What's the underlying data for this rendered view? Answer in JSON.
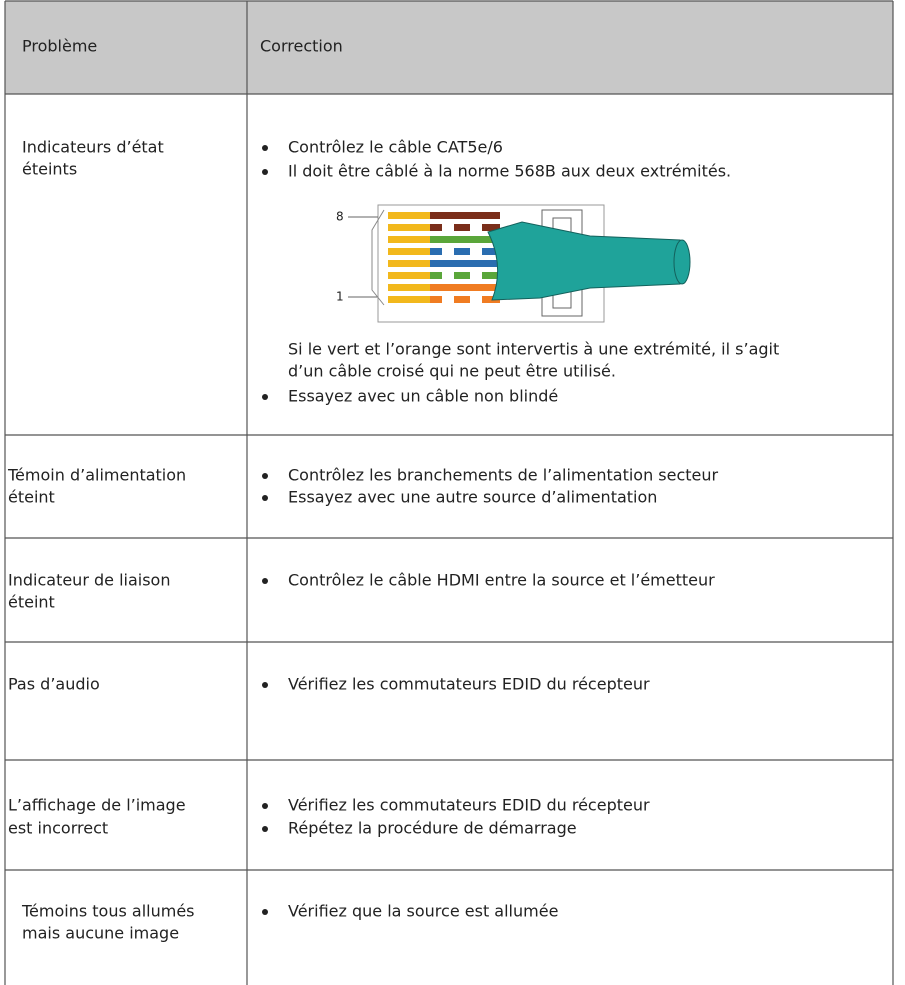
{
  "table": {
    "header": [
      "Problème",
      "Correction"
    ],
    "figure_labels": [
      "8",
      "1"
    ],
    "rows": [
      {
        "problem": [
          "Indicateurs d’état",
          "éteints"
        ],
        "correction": [
          {
            "bullet": "Contrôlez le câble CAT5e/6"
          },
          {
            "bullet": "Il doit être câblé à la norme 568B aux deux extrémités."
          },
          {
            "text": "Si le vert et l’orange sont intervertis à une extrémité, il s’agit"
          },
          {
            "text": "d’un câble croisé qui ne peut être utilisé."
          },
          {
            "bullet": "Essayez avec un câble non blindé"
          }
        ]
      },
      {
        "problem": [
          "Témoin d’alimentation",
          "éteint"
        ],
        "correction": [
          {
            "bullet": "Contrôlez les branchements de l’alimentation secteur"
          },
          {
            "bullet": "Essayez avec une autre source d’alimentation"
          }
        ]
      },
      {
        "problem": [
          "Indicateur de liaison",
          "éteint"
        ],
        "correction": [
          {
            "bullet": "Contrôlez le câble HDMI entre la source et l’émetteur"
          }
        ]
      },
      {
        "problem": [
          "Pas d’audio"
        ],
        "correction": [
          {
            "bullet": "Vérifiez les commutateurs EDID du récepteur"
          }
        ]
      },
      {
        "problem": [
          "L’affichage de l’image",
          "est incorrect"
        ],
        "correction": [
          {
            "bullet": "Vérifiez les commutateurs EDID du récepteur"
          },
          {
            "bullet": "Répétez la procédure de démarrage"
          }
        ]
      },
      {
        "problem": [
          "Témoins tous allumés",
          "mais aucune image"
        ],
        "correction": [
          {
            "bullet": "Vérifiez que la source est allumée"
          }
        ]
      }
    ]
  }
}
